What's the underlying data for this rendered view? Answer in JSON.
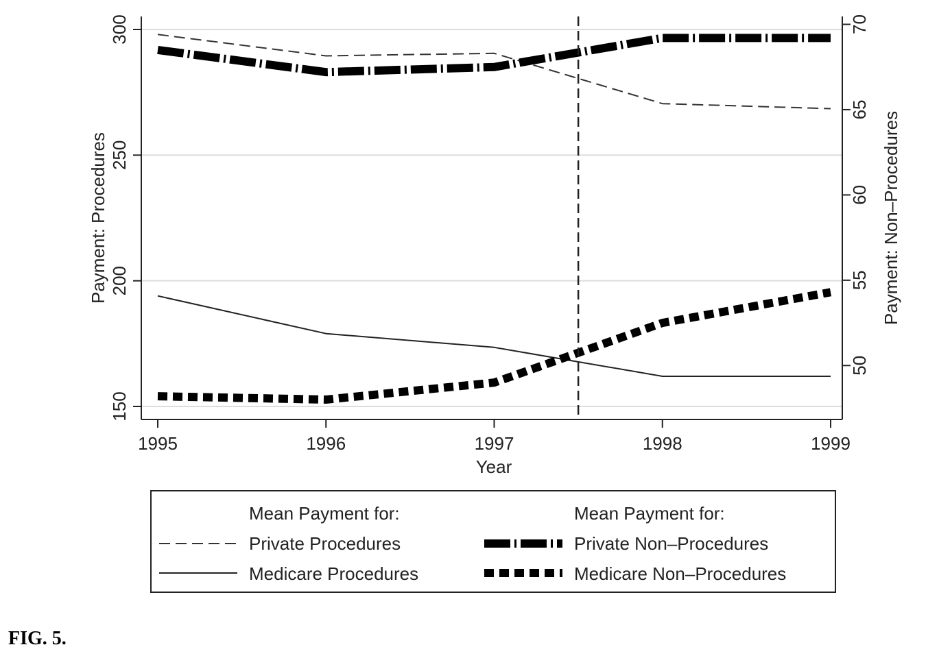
{
  "caption": "FIG. 5.",
  "chart_data": {
    "type": "line",
    "title": "",
    "xlabel": "Year",
    "ylabel_left": "Payment: Procedures",
    "ylabel_right": "Payment: Non–Procedures",
    "x_ticks": [
      "1995",
      "1996",
      "1997",
      "1998",
      "1999"
    ],
    "y_left_ticks": [
      "150",
      "200",
      "250",
      "300"
    ],
    "y_right_ticks": [
      "50",
      "55",
      "60",
      "65",
      "70"
    ],
    "xlim": [
      1995,
      1999
    ],
    "ylim_left": [
      150,
      300
    ],
    "ylim_right": [
      47.6,
      69.7
    ],
    "grid": true,
    "vertical_reference_x": 1997.5,
    "x": [
      1995,
      1996,
      1997,
      1998,
      1999
    ],
    "series": [
      {
        "name": "Private Procedures",
        "axis": "left",
        "style": "dash",
        "values": [
          298,
          289.5,
          290.5,
          270.5,
          268.5
        ]
      },
      {
        "name": "Medicare Procedures",
        "axis": "left",
        "style": "solid",
        "values": [
          194,
          179,
          173.5,
          162,
          162
        ]
      },
      {
        "name": "Private Non–Procedures",
        "axis": "right",
        "style": "thick-dash-dot",
        "values": [
          68.5,
          67.2,
          67.5,
          69.2,
          69.2
        ]
      },
      {
        "name": "Medicare Non–Procedures",
        "axis": "right",
        "style": "thick-short-dash",
        "values": [
          48.2,
          48,
          49,
          52.5,
          54.3
        ]
      }
    ],
    "legend": {
      "position": "bottom",
      "left_heading": "Mean Payment for:",
      "right_heading": "Mean Payment for:"
    }
  }
}
